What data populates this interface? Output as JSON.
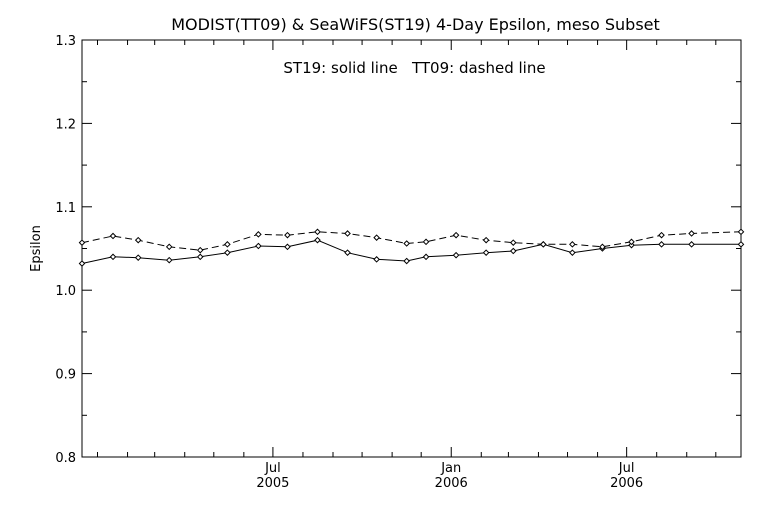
{
  "chart_data": {
    "type": "line",
    "title": "MODIST(TT09) & SeaWiFS(ST19) 4-Day Epsilon, meso Subset",
    "annotation": "ST19: solid line   TT09: dashed line",
    "xlabel": "",
    "ylabel": "Epsilon",
    "x_tick_labels": [
      {
        "month": "Jul",
        "year": "2005",
        "date": "2005-07-01"
      },
      {
        "month": "Jan",
        "year": "2006",
        "date": "2006-01-01"
      },
      {
        "month": "Jul",
        "year": "2006",
        "date": "2006-07-01"
      }
    ],
    "x_minor_ticks": [
      "2004-11-01",
      "2004-12-01",
      "2005-01-01",
      "2005-02-01",
      "2005-03-01",
      "2005-04-01",
      "2005-05-01",
      "2005-06-01",
      "2005-08-01",
      "2005-09-01",
      "2005-10-01",
      "2005-11-01",
      "2005-12-01",
      "2006-02-01",
      "2006-03-01",
      "2006-04-01",
      "2006-05-01",
      "2006-06-01",
      "2006-08-01",
      "2006-09-01",
      "2006-10-01"
    ],
    "xlim": [
      "2004-12-16",
      "2006-10-27"
    ],
    "ylim": [
      0.8,
      1.3
    ],
    "y_ticks": [
      "0.8",
      "0.9",
      "1.0",
      "1.1",
      "1.2",
      "1.3"
    ],
    "grid": false,
    "series": [
      {
        "name": "ST19",
        "style": "solid",
        "marker": "diamond",
        "color": "#000000",
        "points": [
          {
            "x": "2004-12-16",
            "y": 1.032
          },
          {
            "x": "2005-01-17",
            "y": 1.04
          },
          {
            "x": "2005-02-12",
            "y": 1.039
          },
          {
            "x": "2005-03-16",
            "y": 1.036
          },
          {
            "x": "2005-04-17",
            "y": 1.04
          },
          {
            "x": "2005-05-15",
            "y": 1.045
          },
          {
            "x": "2005-06-16",
            "y": 1.053
          },
          {
            "x": "2005-07-16",
            "y": 1.052
          },
          {
            "x": "2005-08-16",
            "y": 1.06
          },
          {
            "x": "2005-09-16",
            "y": 1.045
          },
          {
            "x": "2005-10-16",
            "y": 1.037
          },
          {
            "x": "2005-11-16",
            "y": 1.035
          },
          {
            "x": "2005-12-06",
            "y": 1.04
          },
          {
            "x": "2006-01-06",
            "y": 1.042
          },
          {
            "x": "2006-02-06",
            "y": 1.045
          },
          {
            "x": "2006-03-06",
            "y": 1.047
          },
          {
            "x": "2006-04-06",
            "y": 1.055
          },
          {
            "x": "2006-05-06",
            "y": 1.045
          },
          {
            "x": "2006-06-06",
            "y": 1.05
          },
          {
            "x": "2006-07-06",
            "y": 1.054
          },
          {
            "x": "2006-08-06",
            "y": 1.055
          },
          {
            "x": "2006-09-06",
            "y": 1.055
          },
          {
            "x": "2006-10-27",
            "y": 1.055
          }
        ]
      },
      {
        "name": "TT09",
        "style": "dashed",
        "marker": "diamond",
        "color": "#000000",
        "points": [
          {
            "x": "2004-12-16",
            "y": 1.057
          },
          {
            "x": "2005-01-17",
            "y": 1.065
          },
          {
            "x": "2005-02-12",
            "y": 1.06
          },
          {
            "x": "2005-03-16",
            "y": 1.052
          },
          {
            "x": "2005-04-17",
            "y": 1.048
          },
          {
            "x": "2005-05-15",
            "y": 1.055
          },
          {
            "x": "2005-06-16",
            "y": 1.067
          },
          {
            "x": "2005-07-16",
            "y": 1.066
          },
          {
            "x": "2005-08-16",
            "y": 1.07
          },
          {
            "x": "2005-09-16",
            "y": 1.068
          },
          {
            "x": "2005-10-16",
            "y": 1.063
          },
          {
            "x": "2005-11-16",
            "y": 1.056
          },
          {
            "x": "2005-12-06",
            "y": 1.058
          },
          {
            "x": "2006-01-06",
            "y": 1.066
          },
          {
            "x": "2006-02-06",
            "y": 1.06
          },
          {
            "x": "2006-03-06",
            "y": 1.057
          },
          {
            "x": "2006-04-06",
            "y": 1.055
          },
          {
            "x": "2006-05-06",
            "y": 1.055
          },
          {
            "x": "2006-06-06",
            "y": 1.052
          },
          {
            "x": "2006-07-06",
            "y": 1.058
          },
          {
            "x": "2006-08-06",
            "y": 1.066
          },
          {
            "x": "2006-09-06",
            "y": 1.068
          },
          {
            "x": "2006-10-27",
            "y": 1.07
          }
        ]
      }
    ]
  }
}
